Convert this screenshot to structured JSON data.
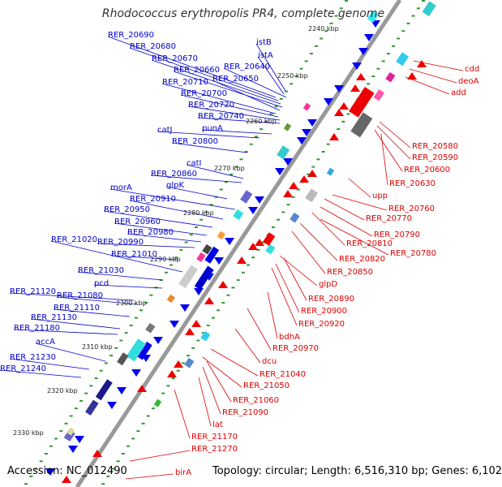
{
  "title": "Rhodococcus erythropolis PR4, complete genome",
  "footer": {
    "accession": "Accession: NC_012490",
    "topology": "Topology: circular; Length: 6,516,310 bp; Genes: 6,102"
  },
  "colors": {
    "backbone": "#999999",
    "left_labels": "#0000cc",
    "right_labels": "#dd0000",
    "tick_dots": "#339933",
    "forward_genes": "#0000ee",
    "reverse_genes": "#ee0000"
  },
  "kbp_ticks": [
    "2240 kbp",
    "2250 kbp",
    "2260 kbp",
    "2270 kbp",
    "2280 kbp",
    "2290 kbp",
    "2300 kbp",
    "2310 kbp",
    "2320 kbp",
    "2330 kbp"
  ],
  "left_labels": [
    "RER_20690",
    "RER_20680",
    "RER_20670",
    "RER_20660",
    "RER_20710",
    "RER_20700",
    "RER_20720",
    "RER_20740",
    "catJ",
    "RER_20800",
    "catI",
    "RER_20860",
    "glpK",
    "morA",
    "RER_20910",
    "RER_20950",
    "RER_20960",
    "RER_20980",
    "RER_21020",
    "RER_20990",
    "RER_21010",
    "RER_21030",
    "pcd",
    "RER_21120",
    "RER_21080",
    "RER_21110",
    "RER_21130",
    "RER_21180",
    "accA",
    "RER_21230",
    "RER_21240",
    "istB",
    "istA",
    "RER_20640",
    "RER_20650",
    "punA"
  ],
  "right_labels": [
    "cdd",
    "deoA",
    "add",
    "RER_20580",
    "RER_20590",
    "RER_20600",
    "RER_20630",
    "upp",
    "RER_20760",
    "RER_20770",
    "RER_20790",
    "RER_20810",
    "RER_20780",
    "RER_20820",
    "RER_20850",
    "glpD",
    "RER_20890",
    "RER_20900",
    "RER_20920",
    "bdhA",
    "RER_20970",
    "dcu",
    "RER_21040",
    "RER_21050",
    "RER_21060",
    "RER_21090",
    "lat",
    "RER_21170",
    "RER_21270",
    "birA"
  ]
}
